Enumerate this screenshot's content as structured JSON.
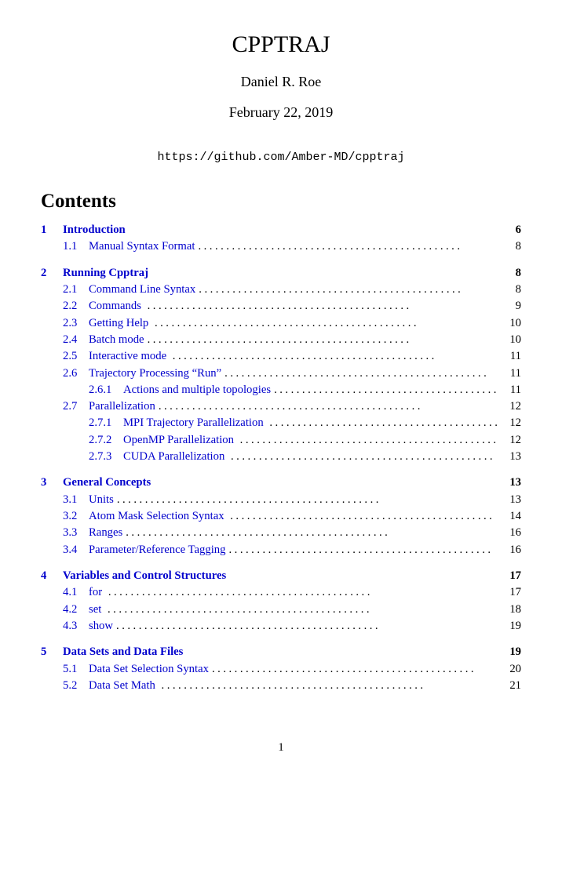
{
  "title": "CPPTRAJ",
  "author": "Daniel R. Roe",
  "date": "February 22, 2019",
  "url": "https://github.com/Amber-MD/cpptraj",
  "contentsHeading": "Contents",
  "toc": [
    {
      "level": 0,
      "num": "1",
      "label": "Introduction",
      "page": "6"
    },
    {
      "level": 1,
      "num": "1.1",
      "label": "Manual Syntax Format",
      "page": "8"
    },
    {
      "level": 0,
      "num": "2",
      "label": "Running Cpptraj",
      "page": "8"
    },
    {
      "level": 1,
      "num": "2.1",
      "label": "Command Line Syntax",
      "page": "8"
    },
    {
      "level": 1,
      "num": "2.2",
      "label": "Commands ",
      "page": "9"
    },
    {
      "level": 1,
      "num": "2.3",
      "label": "Getting Help ",
      "page": "10"
    },
    {
      "level": 1,
      "num": "2.4",
      "label": "Batch mode",
      "page": "10"
    },
    {
      "level": 1,
      "num": "2.5",
      "label": "Interactive mode ",
      "page": "11"
    },
    {
      "level": 1,
      "num": "2.6",
      "label": "Trajectory Processing “Run”",
      "page": "11"
    },
    {
      "level": 2,
      "num": "2.6.1",
      "label": "Actions and multiple topologies",
      "page": "11"
    },
    {
      "level": 1,
      "num": "2.7",
      "label": "Parallelization",
      "page": "12"
    },
    {
      "level": 2,
      "num": "2.7.1",
      "label": "MPI Trajectory Parallelization ",
      "page": "12"
    },
    {
      "level": 2,
      "num": "2.7.2",
      "label": "OpenMP Parallelization ",
      "page": "12"
    },
    {
      "level": 2,
      "num": "2.7.3",
      "label": "CUDA Parallelization ",
      "page": "13"
    },
    {
      "level": 0,
      "num": "3",
      "label": "General Concepts",
      "page": "13"
    },
    {
      "level": 1,
      "num": "3.1",
      "label": "Units",
      "page": "13"
    },
    {
      "level": 1,
      "num": "3.2",
      "label": "Atom Mask Selection Syntax ",
      "page": "14"
    },
    {
      "level": 1,
      "num": "3.3",
      "label": "Ranges",
      "page": "16"
    },
    {
      "level": 1,
      "num": "3.4",
      "label": "Parameter/Reference Tagging",
      "page": "16"
    },
    {
      "level": 0,
      "num": "4",
      "label": "Variables and Control Structures",
      "page": "17"
    },
    {
      "level": 1,
      "num": "4.1",
      "label": "for ",
      "page": "17"
    },
    {
      "level": 1,
      "num": "4.2",
      "label": "set ",
      "page": "18"
    },
    {
      "level": 1,
      "num": "4.3",
      "label": "show",
      "page": "19"
    },
    {
      "level": 0,
      "num": "5",
      "label": "Data Sets and Data Files",
      "page": "19"
    },
    {
      "level": 1,
      "num": "5.1",
      "label": "Data Set Selection Syntax",
      "page": "20"
    },
    {
      "level": 1,
      "num": "5.2",
      "label": "Data Set Math ",
      "page": "21"
    }
  ],
  "pageNumber": "1",
  "dotsFill": "..............................................."
}
